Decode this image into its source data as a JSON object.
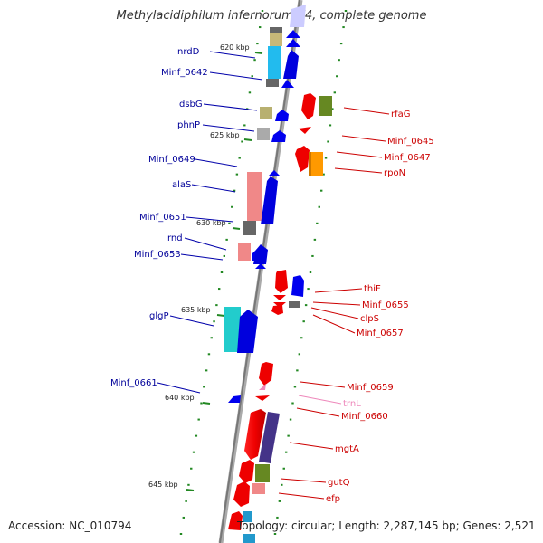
{
  "title": "Methylacidiphilum infernorum V4, complete genome",
  "accession": "Accession: NC_010794",
  "topology": "Topology: circular; Length: 2,287,145 bp; Genes: 2,521",
  "colors": {
    "forward": "#0000ee",
    "reverse": "#ee0000",
    "left_label": "#000099",
    "right_label": "#cc0000",
    "rna": "#ee88bb",
    "tick": "#228822",
    "backbone": "#888888"
  },
  "kbp_ticks": [
    "620 kbp",
    "625 kbp",
    "630 kbp",
    "635 kbp",
    "640 kbp",
    "645 kbp"
  ],
  "left_genes": [
    "nrdD",
    "Minf_0642",
    "dsbG",
    "phnP",
    "Minf_0649",
    "alaS",
    "Minf_0651",
    "rnd",
    "Minf_0653",
    "glgP",
    "Minf_0661"
  ],
  "right_genes": [
    "rfaG",
    "Minf_0645",
    "Minf_0647",
    "rpoN",
    "thiF",
    "Minf_0655",
    "clpS",
    "Minf_0657",
    "Minf_0659",
    "trnL",
    "Minf_0660",
    "mgtA",
    "gutQ",
    "efp"
  ]
}
